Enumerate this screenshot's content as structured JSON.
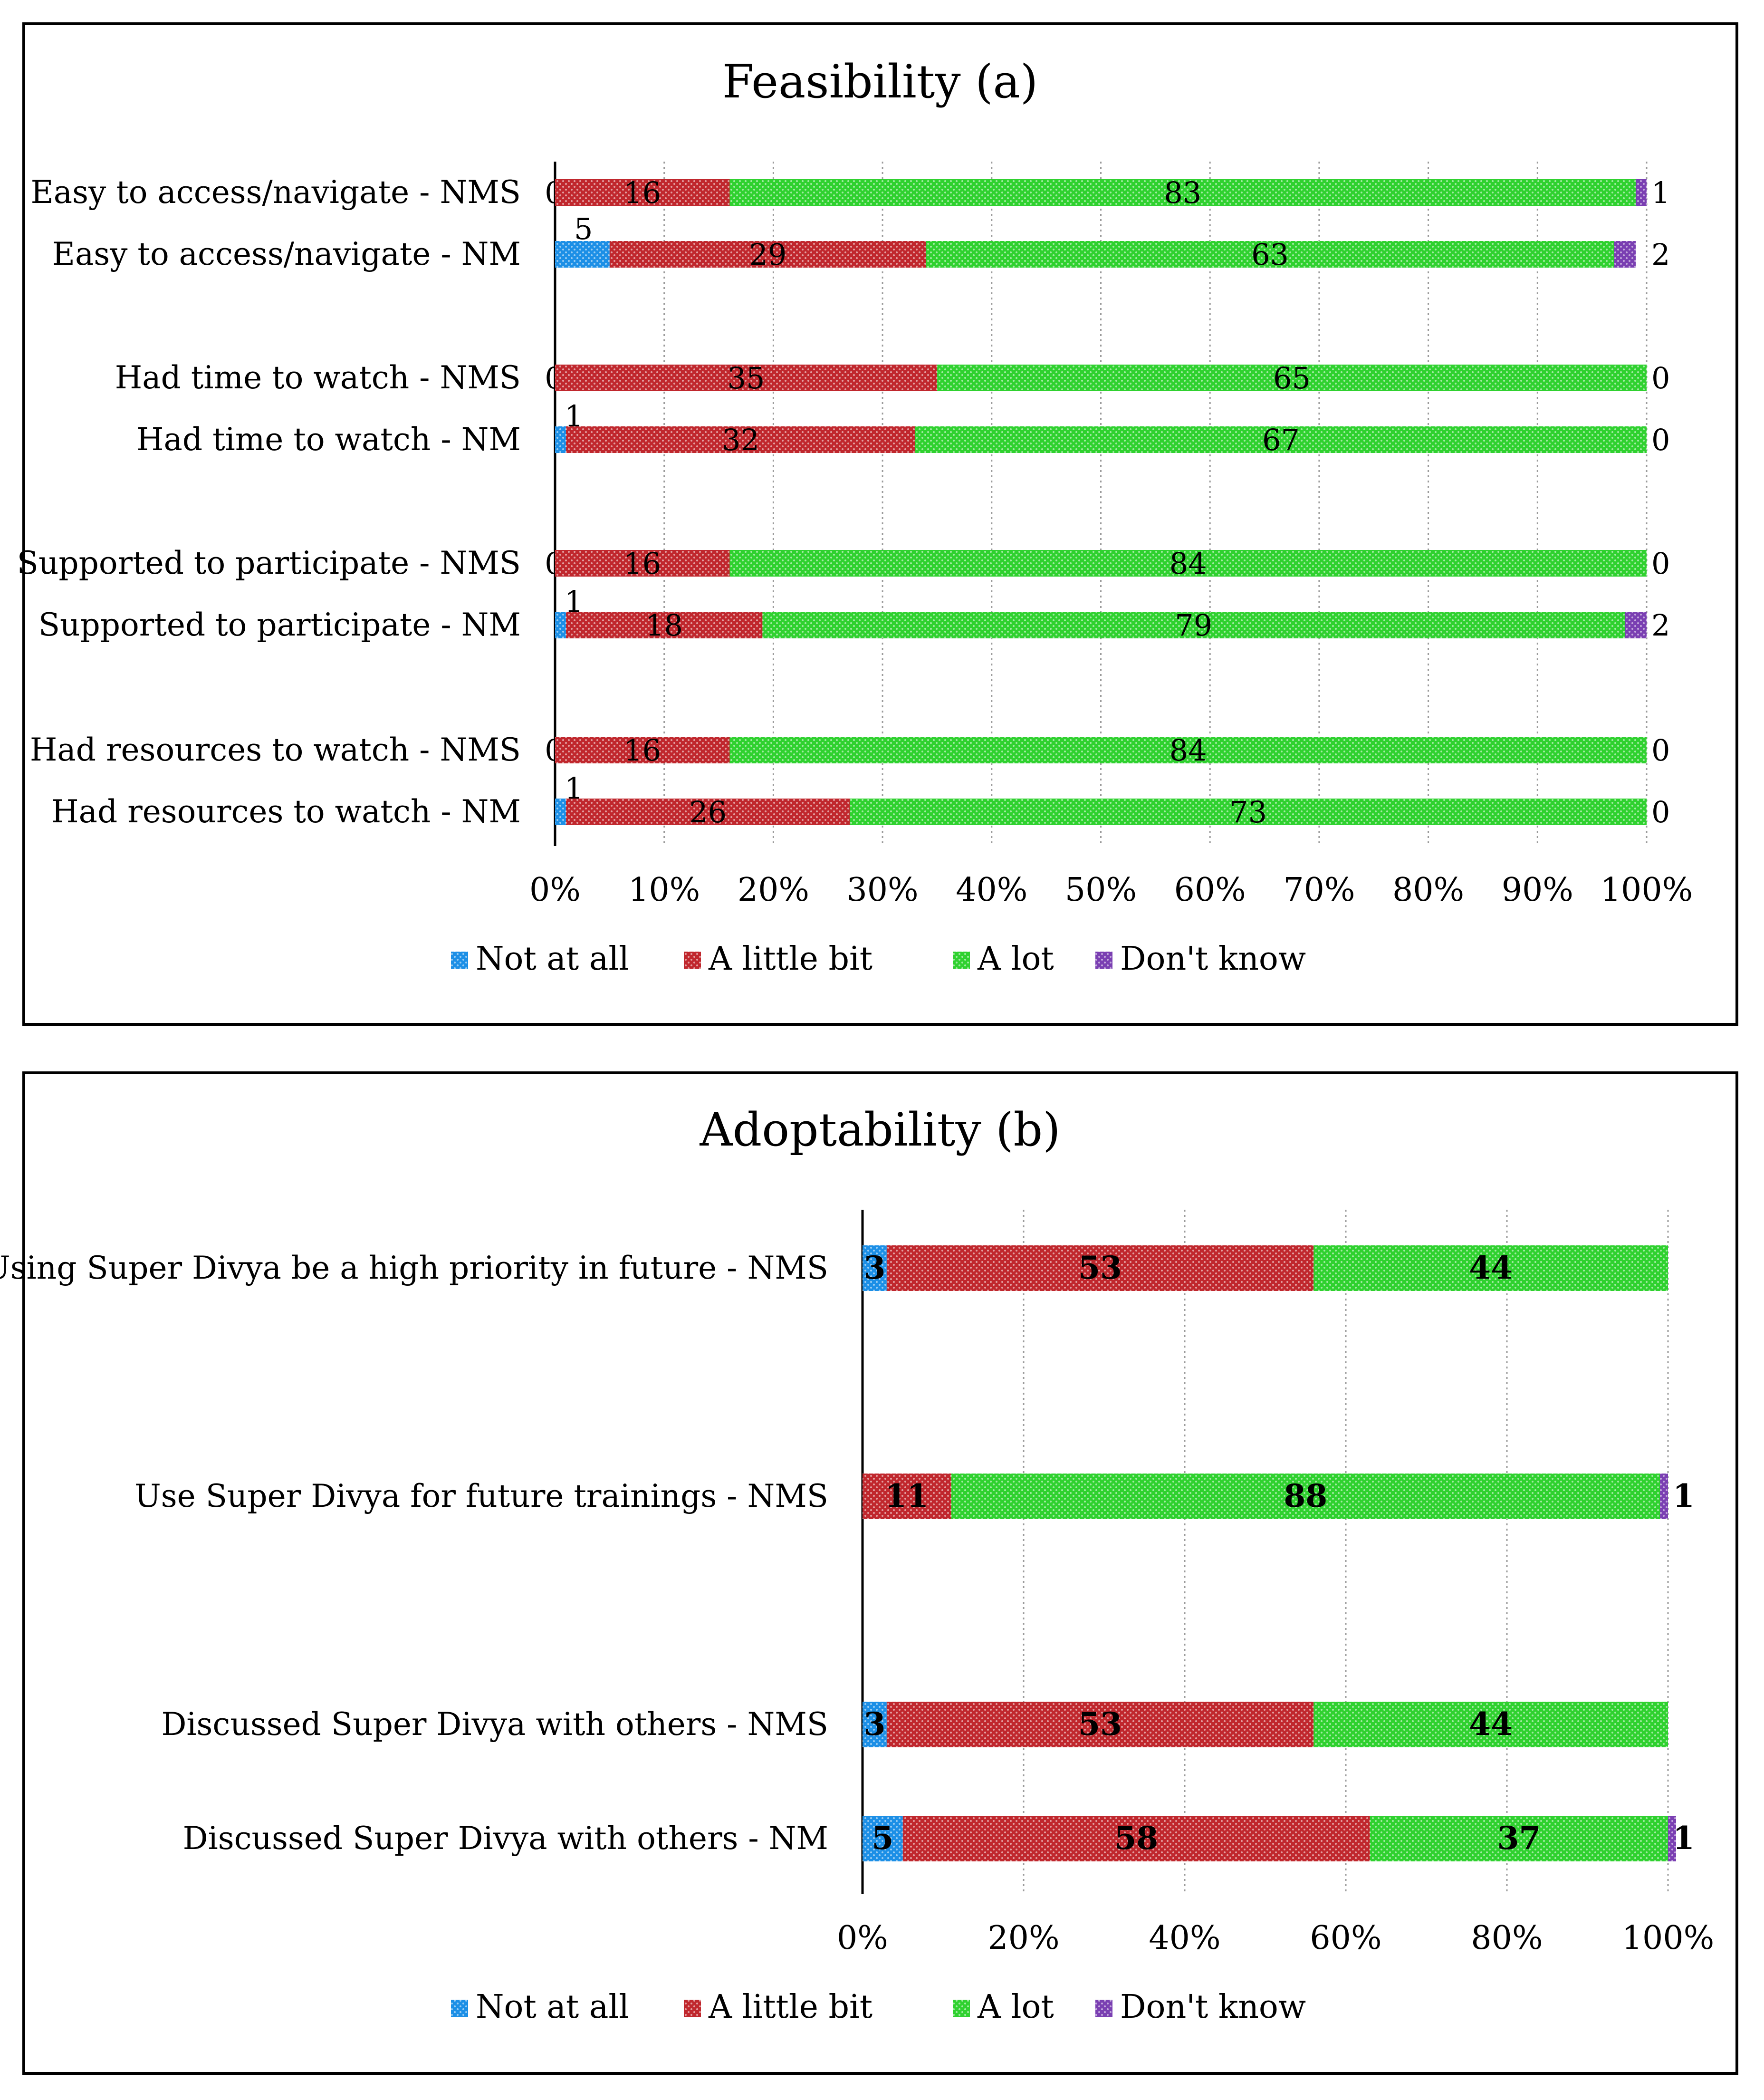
{
  "colors": {
    "Not at all": "#1c8fe6",
    "A little bit": "#c0272d",
    "A lot": "#2fd12f",
    "Don't know": "#7a3fb2",
    "grid": "#9a9a9a",
    "pattern_dot": "#ffffff"
  },
  "chart_data": [
    {
      "type": "bar",
      "orientation": "horizontal",
      "stacked": "percent",
      "title": "Feasibility (a)",
      "xlim": [
        0,
        100
      ],
      "xticks": [
        "0%",
        "10%",
        "20%",
        "30%",
        "40%",
        "50%",
        "60%",
        "70%",
        "80%",
        "90%",
        "100%"
      ],
      "legend": [
        "Not at all",
        "A little bit",
        "A lot",
        "Don't know"
      ],
      "legend_position": "bottom",
      "grid": "vertical-dotted",
      "categories": [
        "Easy to access/navigate - NMS",
        "Easy to access/navigate - NM",
        "Had time to watch - NMS",
        "Had time to watch - NM",
        "Supported to participate - NMS",
        "Supported to participate - NM",
        "Had resources to watch - NMS",
        "Had resources to watch - NM"
      ],
      "series": [
        {
          "name": "Not at all",
          "values": [
            0,
            5,
            0,
            1,
            0,
            1,
            0,
            1
          ]
        },
        {
          "name": "A little bit",
          "values": [
            16,
            29,
            35,
            32,
            16,
            18,
            16,
            26
          ]
        },
        {
          "name": "A lot",
          "values": [
            83,
            63,
            65,
            67,
            84,
            79,
            84,
            73
          ]
        },
        {
          "name": "Don't know",
          "values": [
            1,
            2,
            0,
            0,
            0,
            2,
            0,
            0
          ]
        }
      ]
    },
    {
      "type": "bar",
      "orientation": "horizontal",
      "stacked": "percent",
      "title": "Adoptability (b)",
      "xlim": [
        0,
        100
      ],
      "xticks": [
        "0%",
        "20%",
        "40%",
        "60%",
        "80%",
        "100%"
      ],
      "legend": [
        "Not at all",
        "A little bit",
        "A lot",
        "Don't know"
      ],
      "legend_position": "bottom",
      "grid": "vertical-dotted",
      "categories": [
        "Using Super Divya be a high priority in future - NMS",
        "Use Super Divya for future trainings - NMS",
        "Discussed Super Divya with others - NMS",
        "Discussed Super Divya with others - NM"
      ],
      "series": [
        {
          "name": "Not at all",
          "values": [
            3,
            0,
            3,
            5
          ]
        },
        {
          "name": "A little bit",
          "values": [
            53,
            11,
            53,
            58
          ]
        },
        {
          "name": "A lot",
          "values": [
            44,
            88,
            44,
            37
          ]
        },
        {
          "name": "Don't know",
          "values": [
            0,
            1,
            0,
            1
          ]
        }
      ],
      "value_labels": [
        [
          "3",
          "53",
          "44",
          ""
        ],
        [
          "",
          "11",
          "88",
          "1"
        ],
        [
          "3",
          "53",
          "44",
          ""
        ],
        [
          "5",
          "58",
          "37",
          "1"
        ]
      ]
    }
  ]
}
